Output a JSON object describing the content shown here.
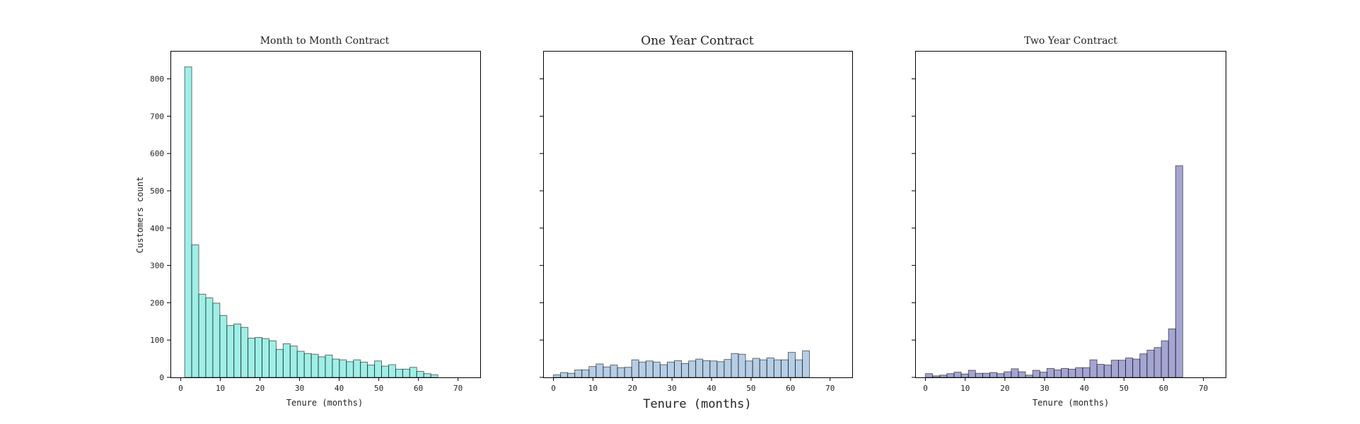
{
  "chart_data": [
    {
      "type": "bar",
      "title": "Month to Month Contract",
      "xlabel": "Tenure (months)",
      "ylabel": "Customers count",
      "bar_color": "#40E0D0",
      "ylim": [
        0,
        875
      ],
      "xlim": [
        -2.6,
        75.6
      ],
      "yticks": [
        0,
        100,
        200,
        300,
        400,
        500,
        600,
        700,
        800
      ],
      "xticks": [
        0,
        10,
        20,
        30,
        40,
        50,
        60,
        70
      ],
      "bin_edges": [
        1,
        2.775,
        4.55,
        6.325,
        8.1,
        9.875,
        11.65,
        13.425,
        15.2,
        16.975,
        18.75,
        20.525,
        22.3,
        24.075,
        25.85,
        27.625,
        29.4,
        31.175,
        32.95,
        34.725,
        36.5,
        38.275,
        40.05,
        41.825,
        43.6,
        45.375,
        47.15,
        48.925,
        50.7,
        52.475,
        54.25,
        56.025,
        57.8,
        59.575,
        61.35,
        63.125,
        64.9,
        66.675,
        68.45,
        70.225,
        72
      ],
      "values": [
        832,
        355,
        223,
        213,
        199,
        166,
        139,
        143,
        134,
        105,
        107,
        104,
        98,
        75,
        90,
        84,
        70,
        64,
        62,
        55,
        60,
        49,
        47,
        42,
        47,
        41,
        33,
        44,
        30,
        34,
        22,
        22,
        27,
        16,
        10,
        7,
        0,
        0,
        0,
        0
      ]
    },
    {
      "type": "bar",
      "title": "One Year Contract",
      "xlabel": "Tenure (months)",
      "ylabel": "",
      "bar_color": "#6E9ECB",
      "ylim": [
        0,
        875
      ],
      "xlim": [
        -2.6,
        75.6
      ],
      "yticks": [
        0,
        100,
        200,
        300,
        400,
        500,
        600,
        700,
        800
      ],
      "xticks": [
        0,
        10,
        20,
        30,
        40,
        50,
        60,
        70
      ],
      "bin_edges": [
        0,
        1.8,
        3.6,
        5.4,
        7.2,
        9,
        10.8,
        12.6,
        14.4,
        16.2,
        18,
        19.8,
        21.6,
        23.4,
        25.2,
        27,
        28.8,
        30.6,
        32.4,
        34.2,
        36,
        37.8,
        39.6,
        41.4,
        43.2,
        45,
        46.8,
        48.6,
        50.4,
        52.2,
        54,
        55.8,
        57.6,
        59.4,
        61.2,
        63,
        64.8,
        66.6,
        68.4,
        70.2,
        72
      ],
      "values": [
        7,
        13,
        11,
        20,
        20,
        29,
        36,
        28,
        33,
        26,
        27,
        47,
        41,
        44,
        41,
        34,
        41,
        45,
        37,
        44,
        49,
        45,
        44,
        42,
        48,
        64,
        62,
        44,
        51,
        47,
        52,
        47,
        47,
        67,
        47,
        71,
        0,
        0,
        0,
        0
      ]
    },
    {
      "type": "bar",
      "title": "Two Year Contract",
      "xlabel": "Tenure (months)",
      "ylabel": "",
      "bar_color": "#4B4BA8",
      "ylim": [
        0,
        875
      ],
      "xlim": [
        -2.6,
        75.6
      ],
      "yticks": [
        0,
        100,
        200,
        300,
        400,
        500,
        600,
        700,
        800
      ],
      "xticks": [
        0,
        10,
        20,
        30,
        40,
        50,
        60,
        70
      ],
      "bin_edges": [
        0,
        1.8,
        3.6,
        5.4,
        7.2,
        9,
        10.8,
        12.6,
        14.4,
        16.2,
        18,
        19.8,
        21.6,
        23.4,
        25.2,
        27,
        28.8,
        30.6,
        32.4,
        34.2,
        36,
        37.8,
        39.6,
        41.4,
        43.2,
        45,
        46.8,
        48.6,
        50.4,
        52.2,
        54,
        55.8,
        57.6,
        59.4,
        61.2,
        63,
        64.8,
        66.6,
        68.4,
        70.2,
        72
      ],
      "values": [
        10,
        4,
        6,
        10,
        14,
        9,
        19,
        11,
        11,
        13,
        10,
        15,
        23,
        15,
        6,
        19,
        14,
        24,
        20,
        24,
        22,
        26,
        26,
        47,
        35,
        33,
        46,
        46,
        52,
        49,
        63,
        73,
        80,
        98,
        130,
        567,
        0,
        0,
        0,
        0
      ]
    }
  ]
}
